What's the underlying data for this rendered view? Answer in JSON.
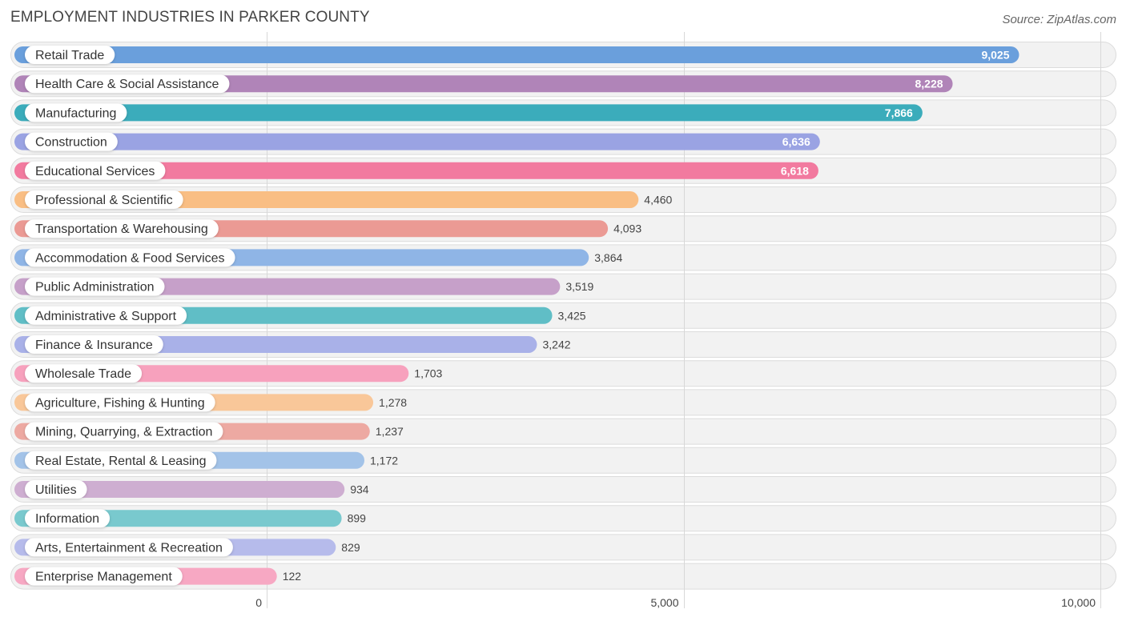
{
  "header": {
    "title": "EMPLOYMENT INDUSTRIES IN PARKER COUNTY",
    "source": "Source: ZipAtlas.com"
  },
  "chart_data": {
    "type": "bar",
    "orientation": "horizontal",
    "title": "EMPLOYMENT INDUSTRIES IN PARKER COUNTY",
    "xlabel": "",
    "ylabel": "",
    "xlim": [
      0,
      10000
    ],
    "grid": true,
    "categories": [
      "Retail Trade",
      "Health Care & Social Assistance",
      "Manufacturing",
      "Construction",
      "Educational Services",
      "Professional & Scientific",
      "Transportation & Warehousing",
      "Accommodation & Food Services",
      "Public Administration",
      "Administrative & Support",
      "Finance & Insurance",
      "Wholesale Trade",
      "Agriculture, Fishing & Hunting",
      "Mining, Quarrying, & Extraction",
      "Real Estate, Rental & Leasing",
      "Utilities",
      "Information",
      "Arts, Entertainment & Recreation",
      "Enterprise Management"
    ],
    "values": [
      9025,
      8228,
      7866,
      6636,
      6618,
      4460,
      4093,
      3864,
      3519,
      3425,
      3242,
      1703,
      1278,
      1237,
      1172,
      934,
      899,
      829,
      122
    ],
    "value_labels": [
      "9,025",
      "8,228",
      "7,866",
      "6,636",
      "6,618",
      "4,460",
      "4,093",
      "3,864",
      "3,519",
      "3,425",
      "3,242",
      "1,703",
      "1,278",
      "1,237",
      "1,172",
      "934",
      "899",
      "829",
      "122"
    ],
    "colors": [
      "#6a9fdc",
      "#b084b8",
      "#3bacbb",
      "#9aa3e3",
      "#f27a9f",
      "#f9be84",
      "#eb9a94",
      "#8fb5e6",
      "#c6a0c9",
      "#60bec6",
      "#a9b1e8",
      "#f7a1bd",
      "#f9c799",
      "#eda9a2",
      "#a3c3e8",
      "#ceaed1",
      "#79c9ce",
      "#b6bbeb",
      "#f7a8c3"
    ],
    "x_ticks": [
      0,
      5000,
      10000
    ],
    "x_tick_labels": [
      "0",
      "5,000",
      "10,000"
    ]
  }
}
